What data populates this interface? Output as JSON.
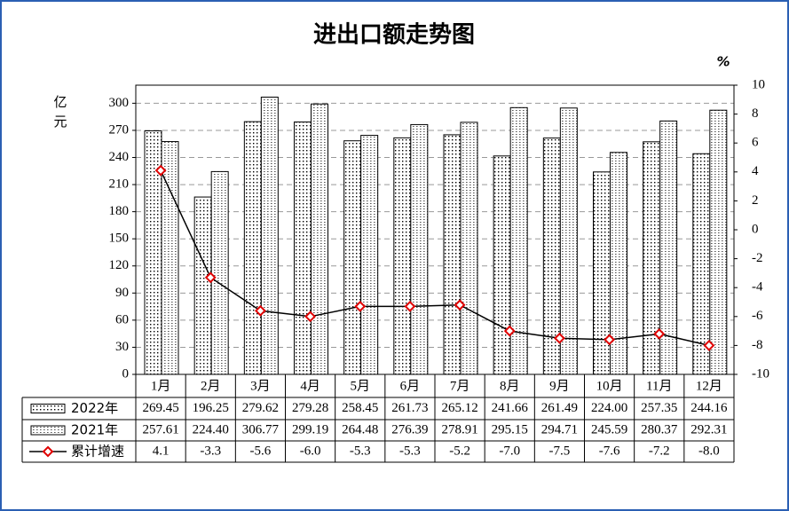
{
  "chart_data": {
    "type": "bar",
    "title": "进出口额走势图",
    "y_label": "亿元",
    "y2_label": "%",
    "categories": [
      "1月",
      "2月",
      "3月",
      "4月",
      "5月",
      "6月",
      "7月",
      "8月",
      "9月",
      "10月",
      "11月",
      "12月"
    ],
    "series": [
      {
        "name": "2022年",
        "type": "bar",
        "color": "#000000",
        "values": [
          269.45,
          196.25,
          279.62,
          279.28,
          258.45,
          261.73,
          265.12,
          241.66,
          261.49,
          224.0,
          257.35,
          244.16
        ],
        "value_labels": [
          "269.45",
          "196.25",
          "279.62",
          "279.28",
          "258.45",
          "261.73",
          "265.12",
          "241.66",
          "261.49",
          "224.00",
          "257.35",
          "244.16"
        ]
      },
      {
        "name": "2021年",
        "type": "bar",
        "color": "#000000",
        "values": [
          257.61,
          224.4,
          306.77,
          299.19,
          264.48,
          276.39,
          278.91,
          295.15,
          294.71,
          245.59,
          280.37,
          292.31
        ],
        "value_labels": [
          "257.61",
          "224.40",
          "306.77",
          "299.19",
          "264.48",
          "276.39",
          "278.91",
          "295.15",
          "294.71",
          "245.59",
          "280.37",
          "292.31"
        ]
      },
      {
        "name": "累计增速",
        "type": "line",
        "axis": "y2",
        "color": "#000000",
        "marker_color": "#e00000",
        "values": [
          4.1,
          -3.3,
          -5.6,
          -6.0,
          -5.3,
          -5.3,
          -5.2,
          -7.0,
          -7.5,
          -7.6,
          -7.2,
          -8.0
        ],
        "value_labels": [
          "4.1",
          "-3.3",
          "-5.6",
          "-6.0",
          "-5.3",
          "-5.3",
          "-5.2",
          "-7.0",
          "-7.5",
          "-7.6",
          "-7.2",
          "-8.0"
        ]
      }
    ],
    "ylim": [
      0,
      320
    ],
    "yticks": [
      0,
      30,
      60,
      90,
      120,
      150,
      180,
      210,
      240,
      270,
      300
    ],
    "y2lim": [
      -10,
      10
    ],
    "y2ticks": [
      -10,
      -8,
      -6,
      -4,
      -2,
      0,
      2,
      4,
      6,
      8,
      10
    ],
    "grid": true
  }
}
